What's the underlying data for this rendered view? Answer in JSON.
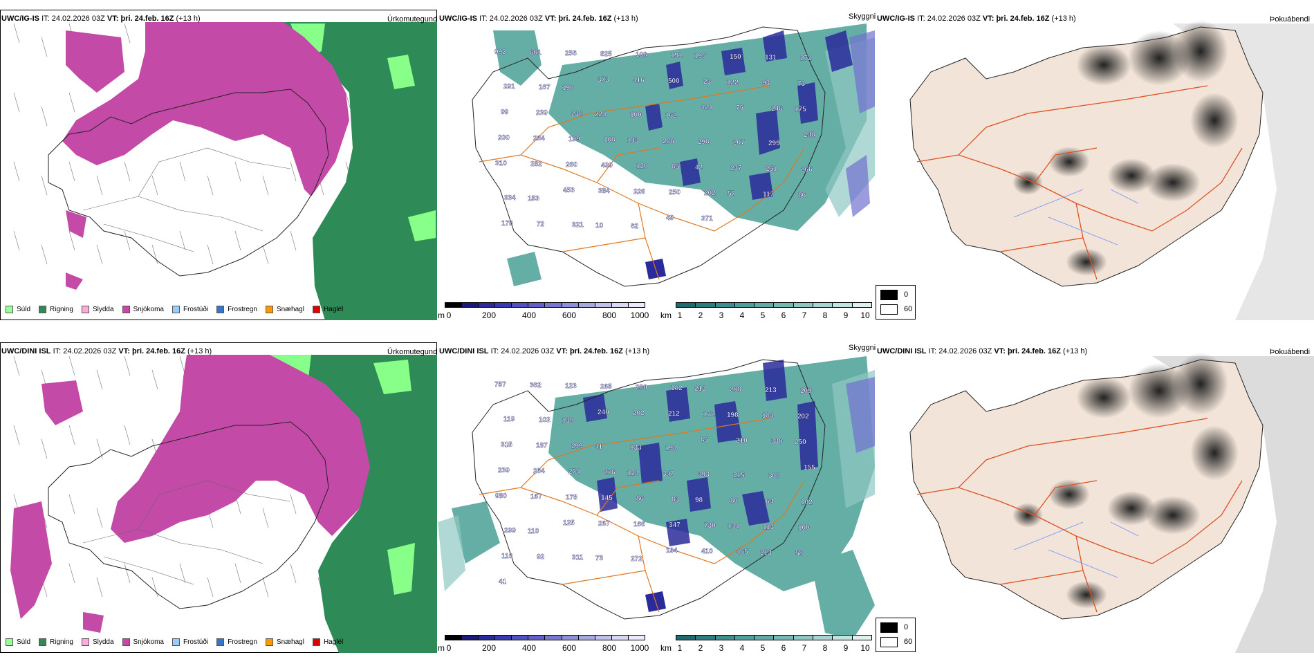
{
  "rows": [
    {
      "model": "UWC/IG-IS",
      "it_label": "IT:",
      "it_value": "24.02.2026 03Z",
      "vt_label": "VT:",
      "vt_value": "þri. 24.feb. 16Z",
      "lead": "(+13 h)",
      "precip_title": "Úrkomutegund",
      "cloud_title": "Skyggni",
      "fog_title": "Þokuábendi",
      "cloud_labels": [
        "992",
        "601",
        "256",
        "825",
        "108",
        "191",
        "195",
        "150",
        "131",
        "272",
        "291",
        "167",
        "190",
        "373",
        "416",
        "500",
        "23",
        "122",
        "93",
        "73",
        "99",
        "239",
        "238",
        "224",
        "100",
        "162",
        "424",
        "75",
        "246",
        "175",
        "200",
        "234",
        "199",
        "108",
        "143",
        "286",
        "298",
        "207",
        "299",
        "248",
        "310",
        "282",
        "260",
        "499",
        "120",
        "85",
        "42",
        "237",
        "251",
        "266",
        "334",
        "153",
        "453",
        "384",
        "226",
        "250",
        "202",
        "57",
        "117",
        "86",
        "178",
        "72",
        "321",
        "10",
        "62",
        "49",
        "371"
      ]
    },
    {
      "model": "UWC/DINI ISL",
      "it_label": "IT:",
      "it_value": "24.02.2026 03Z",
      "vt_label": "VT:",
      "vt_value": "þri. 24.feb. 16Z",
      "lead": "(+13 h)",
      "precip_title": "Úrkomutegund",
      "cloud_title": "Skyggni",
      "fog_title": "Þokuábendi",
      "cloud_labels": [
        "757",
        "362",
        "123",
        "265",
        "280",
        "182",
        "213",
        "208",
        "213",
        "209",
        "119",
        "102",
        "139",
        "240",
        "202",
        "212",
        "172",
        "198",
        "184",
        "202",
        "315",
        "187",
        "299",
        "41",
        "133",
        "194",
        "85",
        "210",
        "330",
        "250",
        "239",
        "264",
        "274",
        "276",
        "124",
        "347",
        "393",
        "215",
        "308",
        "155",
        "980",
        "167",
        "178",
        "145",
        "86",
        "83",
        "98",
        "80",
        "64",
        "102",
        "299",
        "110",
        "125",
        "267",
        "166",
        "347",
        "730",
        "134",
        "113",
        "100",
        "110",
        "92",
        "311",
        "73",
        "272",
        "194",
        "410",
        "465",
        "213",
        "58",
        "41"
      ]
    }
  ],
  "precip_legend": [
    {
      "label": "Súld",
      "color": "#99ff99"
    },
    {
      "label": "Rigning",
      "color": "#2e8b57"
    },
    {
      "label": "Slydda",
      "color": "#ffaadd"
    },
    {
      "label": "Snjókoma",
      "color": "#cc44aa"
    },
    {
      "label": "Frostúði",
      "color": "#99ccff"
    },
    {
      "label": "Frostregn",
      "color": "#3377cc"
    },
    {
      "label": "Snæhagl",
      "color": "#ff9900"
    },
    {
      "label": "Haglél",
      "color": "#dd0000"
    }
  ],
  "cloud_base_bar": {
    "unit": "m",
    "ticks": [
      "0",
      "200",
      "400",
      "600",
      "800",
      "1000"
    ],
    "colors": [
      "#000000",
      "#1a1a7a",
      "#2a2a9a",
      "#3a3ab0",
      "#5050c0",
      "#6060c8",
      "#7878d0",
      "#9090d8",
      "#a8a8e0",
      "#c0c0ea",
      "#d8d8f2",
      "#eaeafa"
    ]
  },
  "visibility_bar": {
    "unit": "km",
    "ticks": [
      "1",
      "2",
      "3",
      "4",
      "5",
      "6",
      "7",
      "8",
      "9",
      "10"
    ],
    "colors": [
      "#1f6b6b",
      "#2e7d7d",
      "#3d8f8f",
      "#4e9e9a",
      "#62aaa6",
      "#78b8b4",
      "#90c6c2",
      "#aad4d1",
      "#c4e2e0",
      "#e0f0ef"
    ]
  },
  "fog_legend": [
    {
      "label": "0",
      "color": "#000000"
    },
    {
      "label": "60",
      "color": "#ffffff"
    }
  ],
  "colors": {
    "snow": "#c44aa8",
    "rain": "#2e8b57",
    "drizzle": "#88ff88",
    "visibility": "#3f9a90",
    "cloudbase": "#2a2a9a",
    "land": "#f2e4d8",
    "roads": "#e07820"
  }
}
